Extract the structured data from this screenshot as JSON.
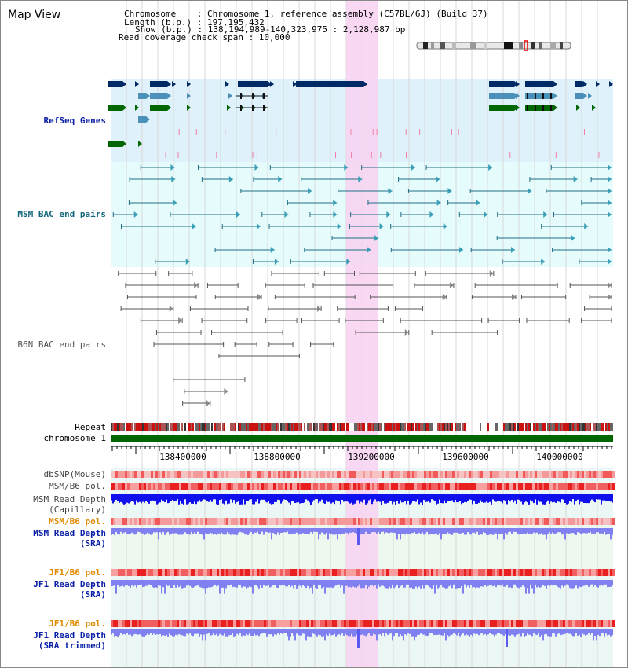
{
  "panel_title": "Map View",
  "info": {
    "chromosome": "Chromosome    : Chromosome 1, reference assembly (C57BL/6J) (Build 37)",
    "length": "Length (b.p.) : 197,195,432",
    "show": "Show (b.p.) : 138,194,989-140,323,975 : 2,128,987 bp",
    "coverage": "Read coverage check span : 10,000"
  },
  "tracks": {
    "refseq": "RefSeq Genes",
    "msm_bac": "MSM BAC end pairs",
    "b6n_bac": "B6N BAC end pairs",
    "repeat": "Repeat",
    "chromosome": "chromosome 1",
    "dbsnp": "dbSNP(Mouse)",
    "msm_b6_pol_1": "MSM/B6 pol.",
    "msm_depth_cap_1": "MSM Read Depth",
    "msm_depth_cap_2": "(Capillary)",
    "msm_b6_pol_2": "MSM/B6 pol.",
    "msm_depth_sra_1": "MSM Read Depth",
    "msm_depth_sra_2": "(SRA)",
    "jf1_b6_pol_1": "JF1/B6 pol.",
    "jf1_depth_sra_1": "JF1 Read Depth",
    "jf1_depth_sra_2": "(SRA)",
    "jf1_b6_pol_2": "JF1/B6 pol.",
    "jf1_depth_trim_1": "JF1 Read Depth",
    "jf1_depth_trim_2": "(SRA trimmed)"
  },
  "axis": {
    "ticks": [
      "138400000",
      "138800000",
      "139200000",
      "139600000",
      "140000000"
    ]
  },
  "colors": {
    "refseq_bg": "#dff1fa",
    "bac_bg": "#e6fbfb",
    "highlight": "#f8d8f4",
    "chromosome_bar": "#006600",
    "depth_capillary": "#1010ee",
    "depth_sra": "#8080f0",
    "gene_dark": "#002a66",
    "gene_light": "#4a90b8",
    "gene_green": "#006600"
  }
}
